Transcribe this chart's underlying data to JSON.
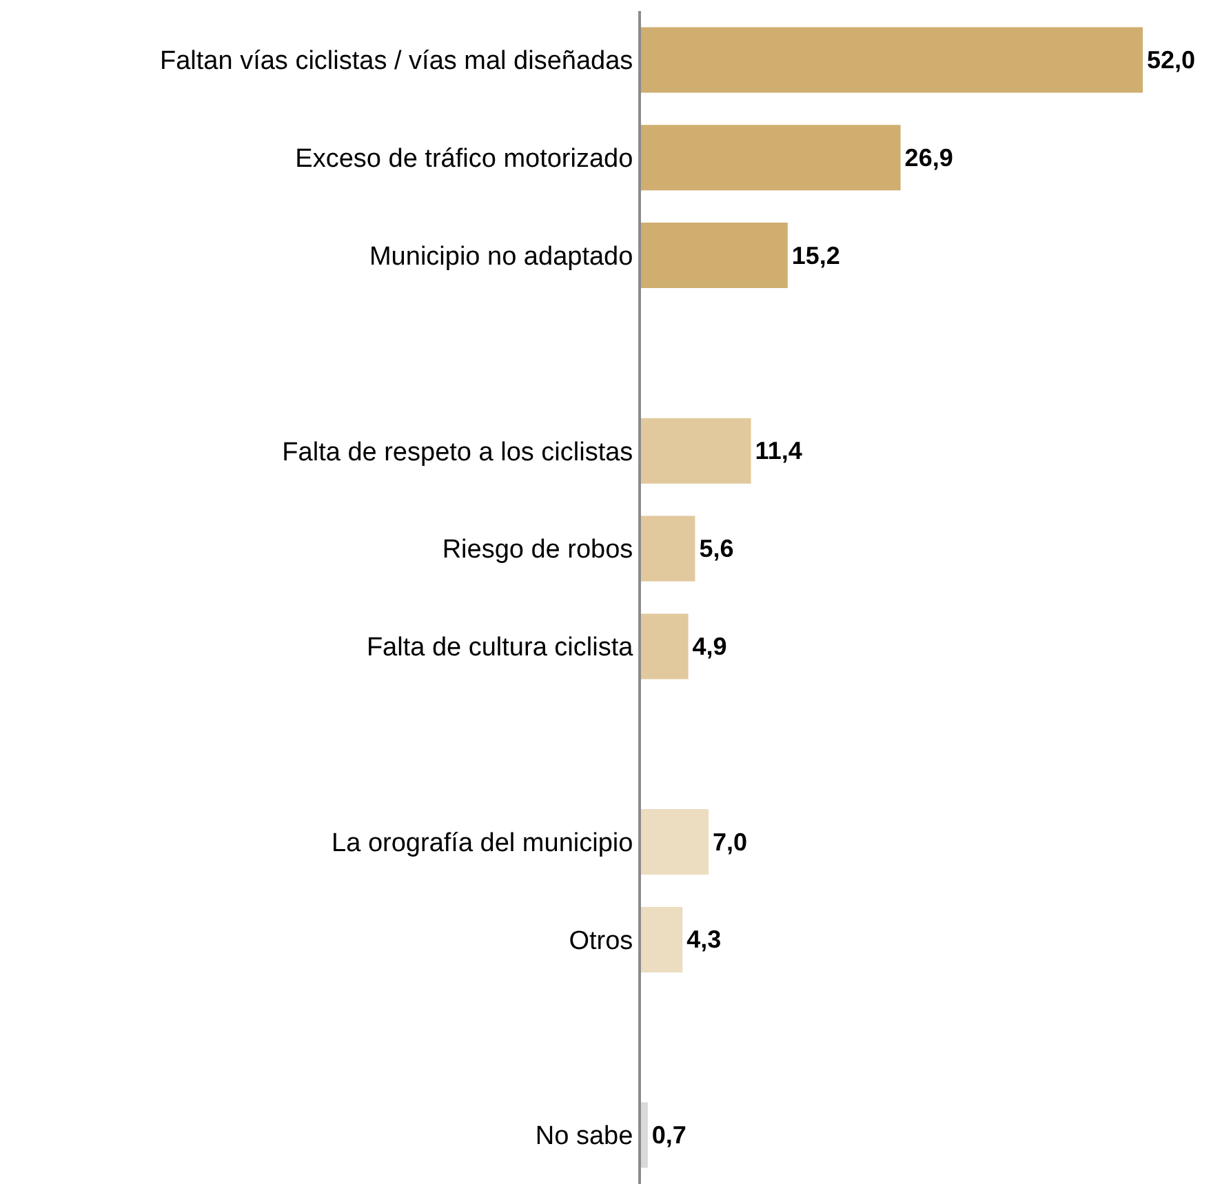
{
  "chart_data": {
    "type": "bar",
    "orientation": "horizontal",
    "categories": [
      "Faltan vías ciclistas / vías mal diseñadas",
      "Exceso de tráfico motorizado",
      "Municipio no adaptado",
      null,
      "Falta de respeto a los ciclistas",
      "Riesgo de robos",
      "Falta de cultura ciclista",
      null,
      "La orografía del municipio",
      "Otros",
      null,
      "No sabe"
    ],
    "values": [
      52.0,
      26.9,
      15.2,
      null,
      11.4,
      5.6,
      4.9,
      null,
      7.0,
      4.3,
      null,
      0.7
    ],
    "colors": [
      "#cfae70",
      "#cfae70",
      "#cfae70",
      null,
      "#e2c99d",
      "#e2c99d",
      "#e2c99d",
      null,
      "#ecdcc0",
      "#ecdcc0",
      null,
      "#d9d9d9"
    ],
    "value_labels": [
      "52,0",
      "26,9",
      "15,2",
      null,
      "11,4",
      "5,6",
      "4,9",
      null,
      "7,0",
      "4,3",
      null,
      "0,7"
    ],
    "legend": false
  }
}
